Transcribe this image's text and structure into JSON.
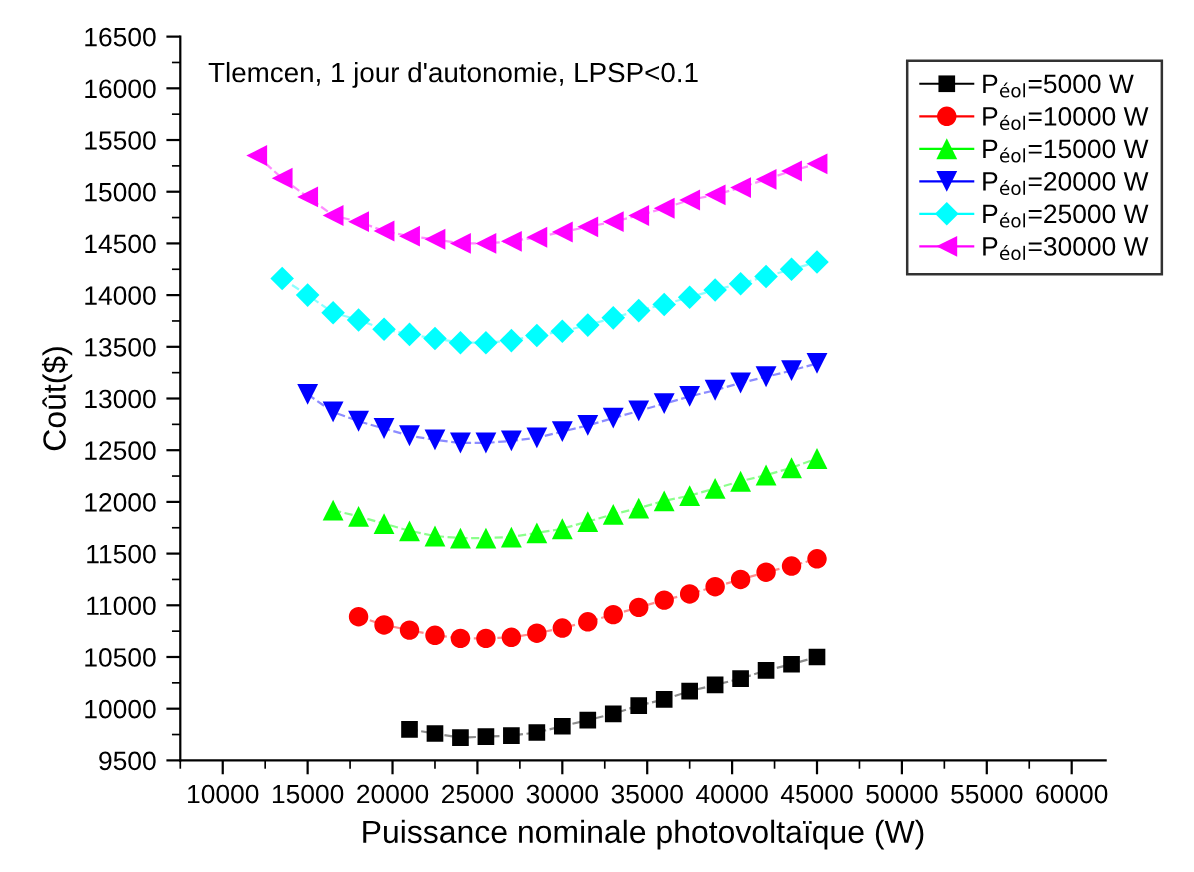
{
  "chart_data": {
    "type": "line",
    "xlabel": "Puissance nominale photovoltaïque (W)",
    "ylabel": "Coût($)",
    "annotations": [
      "Tlemcen, 1 jour d'autonomie, LPSP<0.1"
    ],
    "xlim": [
      7500,
      62000
    ],
    "ylim": [
      9500,
      16500
    ],
    "xticks": [
      10000,
      15000,
      20000,
      25000,
      30000,
      35000,
      40000,
      45000,
      50000,
      55000,
      60000
    ],
    "yticks": [
      9500,
      10000,
      10500,
      11000,
      11500,
      12000,
      12500,
      13000,
      13500,
      14000,
      14500,
      15000,
      15500,
      16000,
      16500
    ],
    "grid": false,
    "legend": "top right",
    "line_style": "dashed",
    "series": [
      {
        "name": "P$_{éol}$=5000 W",
        "color": "#000000",
        "marker": "square",
        "x": [
          21000,
          22500,
          24000,
          25500,
          27000,
          28500,
          30000,
          31500,
          33000,
          34500,
          36000,
          37500,
          39000,
          40500,
          42000,
          43500,
          45000
        ],
        "values": [
          9800,
          9760,
          9720,
          9730,
          9740,
          9770,
          9830,
          9890,
          9950,
          10030,
          10090,
          10170,
          10230,
          10290,
          10370,
          10430,
          10500
        ]
      },
      {
        "name": "P$_{éol}$=10000 W",
        "color": "#ff0000",
        "marker": "circle",
        "x": [
          18000,
          19500,
          21000,
          22500,
          24000,
          25500,
          27000,
          28500,
          30000,
          31500,
          33000,
          34500,
          36000,
          37500,
          39000,
          40500,
          42000,
          43500,
          45000
        ],
        "values": [
          10890,
          10810,
          10760,
          10710,
          10680,
          10680,
          10690,
          10730,
          10780,
          10840,
          10910,
          10980,
          11050,
          11110,
          11180,
          11250,
          11320,
          11380,
          11450
        ]
      },
      {
        "name": "P$_{éol}$=15000 W",
        "color": "#00ff00",
        "marker": "triangle",
        "x": [
          16500,
          18000,
          19500,
          21000,
          22500,
          24000,
          25500,
          27000,
          28500,
          30000,
          31500,
          33000,
          34500,
          36000,
          37500,
          39000,
          40500,
          42000,
          43500,
          45000
        ],
        "values": [
          11920,
          11860,
          11790,
          11720,
          11670,
          11650,
          11650,
          11660,
          11700,
          11740,
          11810,
          11880,
          11940,
          12010,
          12060,
          12130,
          12200,
          12260,
          12330,
          12420
        ]
      },
      {
        "name": "P$_{éol}$=20000 W",
        "color": "#0000ff",
        "marker": "triangle_down",
        "x": [
          15000,
          16500,
          18000,
          19500,
          21000,
          22500,
          24000,
          25500,
          27000,
          28500,
          30000,
          31500,
          33000,
          34500,
          36000,
          37500,
          39000,
          40500,
          42000,
          43500,
          45000
        ],
        "values": [
          13040,
          12870,
          12780,
          12710,
          12640,
          12600,
          12570,
          12570,
          12590,
          12620,
          12680,
          12740,
          12810,
          12880,
          12950,
          13020,
          13080,
          13150,
          13210,
          13270,
          13340
        ]
      },
      {
        "name": "P$_{éol}$=25000 W",
        "color": "#00ffff",
        "marker": "diamond",
        "x": [
          13500,
          15000,
          16500,
          18000,
          19500,
          21000,
          22500,
          24000,
          25500,
          27000,
          28500,
          30000,
          31500,
          33000,
          34500,
          36000,
          37500,
          39000,
          40500,
          42000,
          43500,
          45000
        ],
        "values": [
          14160,
          14000,
          13830,
          13760,
          13670,
          13620,
          13580,
          13540,
          13540,
          13560,
          13610,
          13650,
          13710,
          13780,
          13850,
          13910,
          13980,
          14050,
          14110,
          14180,
          14250,
          14320
        ]
      },
      {
        "name": "P$_{éol}$=30000 W",
        "color": "#ff00ff",
        "marker": "triangle_left",
        "x": [
          12000,
          13500,
          15000,
          16500,
          18000,
          19500,
          21000,
          22500,
          24000,
          25500,
          27000,
          28500,
          30000,
          31500,
          33000,
          34500,
          36000,
          37500,
          39000,
          40500,
          42000,
          43500,
          45000
        ],
        "values": [
          15350,
          15130,
          14950,
          14770,
          14710,
          14620,
          14570,
          14540,
          14500,
          14500,
          14520,
          14560,
          14610,
          14660,
          14710,
          14770,
          14840,
          14920,
          14970,
          15040,
          15120,
          15200,
          15270
        ]
      }
    ]
  }
}
